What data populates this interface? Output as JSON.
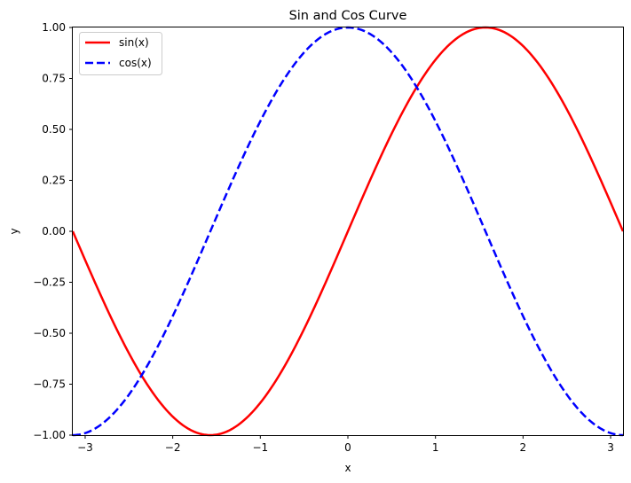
{
  "chart_data": {
    "type": "line",
    "title": "Sin and Cos Curve",
    "xlabel": "x",
    "ylabel": "y",
    "xlim": [
      -3.14159,
      3.14159
    ],
    "ylim": [
      -1.0,
      1.0
    ],
    "x_ticks": [
      -3,
      -2,
      -1,
      0,
      1,
      2,
      3
    ],
    "x_tick_labels": [
      "−3",
      "−2",
      "−1",
      "0",
      "1",
      "2",
      "3"
    ],
    "y_ticks": [
      -1.0,
      -0.75,
      -0.5,
      -0.25,
      0.0,
      0.25,
      0.5,
      0.75,
      1.0
    ],
    "y_tick_labels": [
      "−1.00",
      "−0.75",
      "−0.50",
      "−0.25",
      "0.00",
      "0.25",
      "0.50",
      "0.75",
      "1.00"
    ],
    "grid": false,
    "legend_position": "upper-left",
    "series": [
      {
        "name": "sin(x)",
        "color": "#ff0000",
        "line_style": "solid",
        "x": [
          -3.14159,
          -2.74889,
          -2.35619,
          -1.9635,
          -1.5708,
          -1.1781,
          -0.7854,
          -0.3927,
          0.0,
          0.3927,
          0.7854,
          1.1781,
          1.5708,
          1.9635,
          2.35619,
          2.74889,
          3.14159
        ],
        "y": [
          0.0,
          -0.38268,
          -0.70711,
          -0.92388,
          -1.0,
          -0.92388,
          -0.70711,
          -0.38268,
          0.0,
          0.38268,
          0.70711,
          0.92388,
          1.0,
          0.92388,
          0.70711,
          0.38268,
          0.0
        ]
      },
      {
        "name": "cos(x)",
        "color": "#0000ff",
        "line_style": "dashed",
        "x": [
          -3.14159,
          -2.74889,
          -2.35619,
          -1.9635,
          -1.5708,
          -1.1781,
          -0.7854,
          -0.3927,
          0.0,
          0.3927,
          0.7854,
          1.1781,
          1.5708,
          1.9635,
          2.35619,
          2.74889,
          3.14159
        ],
        "y": [
          -1.0,
          -0.92388,
          -0.70711,
          -0.38268,
          0.0,
          0.38268,
          0.70711,
          0.92388,
          1.0,
          0.92388,
          0.70711,
          0.38268,
          0.0,
          -0.38268,
          -0.70711,
          -0.92388,
          -1.0
        ]
      }
    ]
  }
}
